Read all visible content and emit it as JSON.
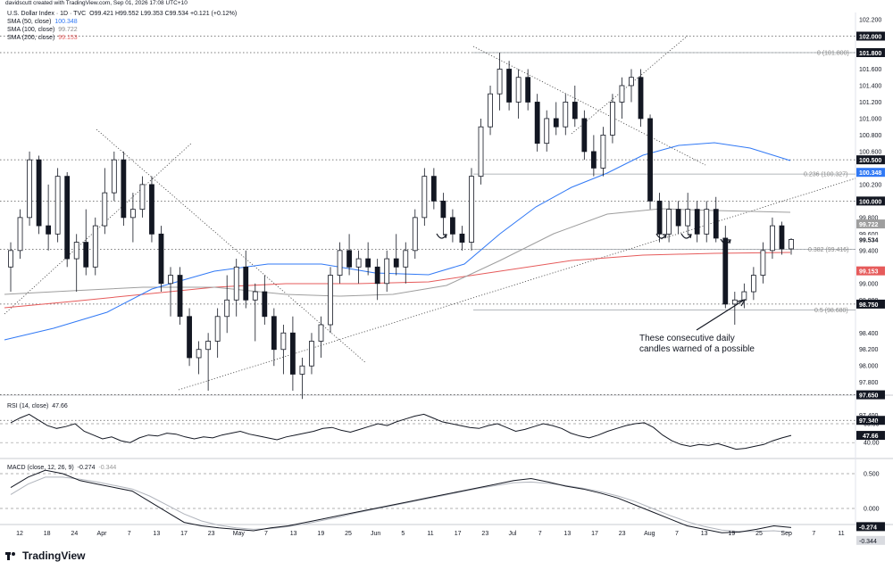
{
  "header": {
    "credit": "davidscutt created with TradingView.com, Sep 01, 2026 17:08 UTC+10"
  },
  "legend": {
    "symbol": "U.S. Dollar Index · 1D · TVC",
    "ohlc": "O99.421  H99.552  L99.353  C99.534  +0.121 (+0.12%)",
    "sma50": {
      "label": "SMA (50, close)",
      "value": "100.348",
      "color": "#3179f5"
    },
    "sma100": {
      "label": "SMA (100, close)",
      "value": "99.722",
      "color": "#9e9e9e"
    },
    "sma200": {
      "label": "SMA (200, close)",
      "value": "99.153",
      "color": "#e65b5b"
    },
    "rsi": {
      "label": "RSI (14, close)",
      "value": "47.66"
    },
    "macd": {
      "label": "MACD (close, 12, 26, 9)",
      "value1": "-0.274",
      "value2": "-0.344"
    }
  },
  "annotation": {
    "text1": "These consecutive daily",
    "text2": "candles warned of a possible"
  },
  "brand": {
    "name": "TradingView"
  },
  "chart_data": {
    "type": "candlestick",
    "price_axis": {
      "ticks": [
        "102.200",
        "101.800",
        "101.600",
        "101.400",
        "101.200",
        "101.000",
        "100.800",
        "100.600",
        "100.200",
        "99.800",
        "99.600",
        "99.400",
        "99.000",
        "98.800",
        "98.400",
        "98.200",
        "98.000",
        "97.800",
        "97.400"
      ],
      "ylim": [
        97.3,
        102.3
      ]
    },
    "x_ticks": [
      "12",
      "18",
      "24",
      "Apr",
      "7",
      "13",
      "17",
      "23",
      "May",
      "7",
      "13",
      "19",
      "25",
      "Jun",
      "5",
      "11",
      "17",
      "23",
      "Jul",
      "7",
      "13",
      "17",
      "23",
      "Aug",
      "7",
      "13",
      "19",
      "25",
      "Sep",
      "7",
      "11"
    ],
    "price_labels": [
      {
        "text": "102.000",
        "value": 102.0,
        "style": "black"
      },
      {
        "text": "101.800",
        "value": 101.8,
        "style": "black"
      },
      {
        "text": "100.500",
        "value": 100.5,
        "style": "black"
      },
      {
        "text": "100.348",
        "value": 100.348,
        "style": "blue"
      },
      {
        "text": "100.000",
        "value": 100.0,
        "style": "black"
      },
      {
        "text": "99.722",
        "value": 99.722,
        "style": "gray"
      },
      {
        "text": "99.534",
        "value": 99.534,
        "style": "plain"
      },
      {
        "text": "99.153",
        "value": 99.153,
        "style": "red"
      },
      {
        "text": "98.750",
        "value": 98.75,
        "style": "black"
      },
      {
        "text": "97.650",
        "value": 97.65,
        "style": "black"
      },
      {
        "text": "97.340",
        "value": 97.34,
        "style": "black"
      }
    ],
    "fib_labels": [
      {
        "text": "0 (101.800)",
        "value": 101.8
      },
      {
        "text": "0.236 (100.327)",
        "value": 100.327
      },
      {
        "text": "0.382 (99.416)",
        "value": 99.416
      },
      {
        "text": "0.5 (98.680)",
        "value": 98.68
      }
    ],
    "levels": [
      102.0,
      101.8,
      100.5,
      100.0,
      99.416,
      98.75,
      97.65,
      97.34
    ],
    "rsi_axis": {
      "ticks": [
        "60.00",
        "40.00"
      ],
      "current": "47.66",
      "ylim": [
        25,
        75
      ]
    },
    "macd_axis": {
      "ticks": [
        "0.500",
        "0.000"
      ],
      "current1": "-0.274",
      "current2": "-0.344",
      "ylim": [
        -0.5,
        0.75
      ]
    }
  }
}
